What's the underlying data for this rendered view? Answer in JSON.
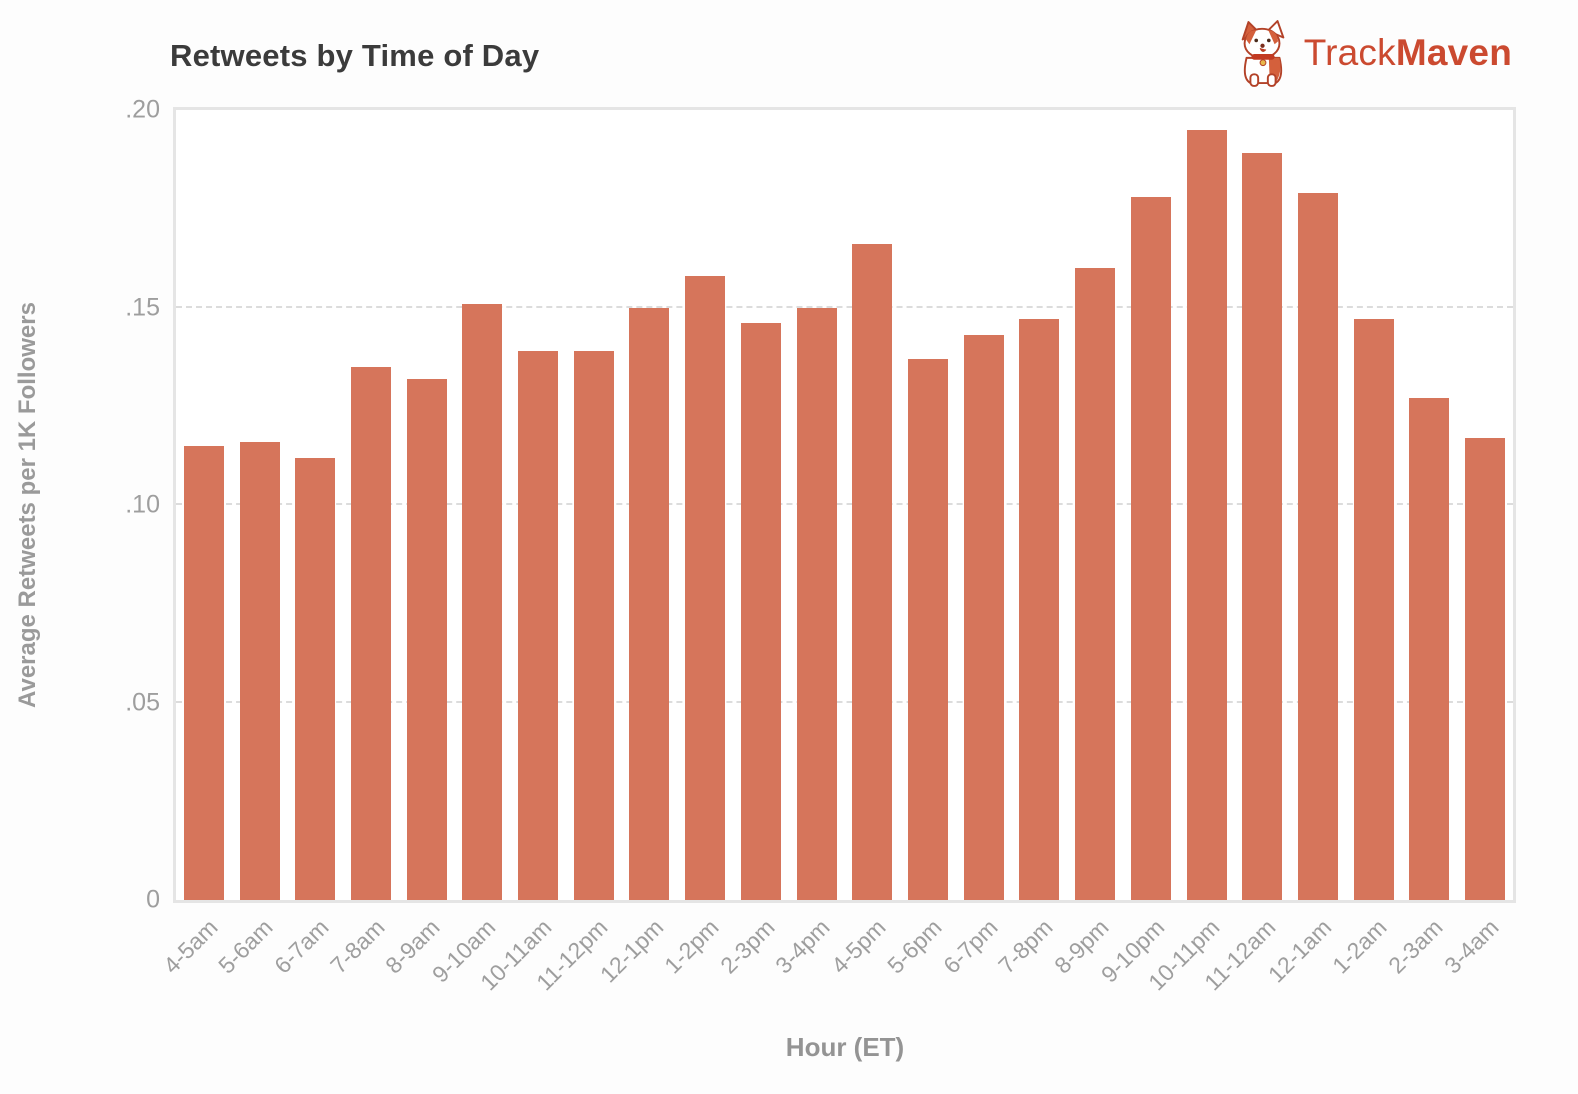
{
  "header": {
    "title": "Retweets by Time of Day",
    "logo": {
      "track": "Track",
      "maven": "Maven",
      "color": "#cb4a30",
      "mascot": "corgi-dog-icon"
    }
  },
  "chart_data": {
    "type": "bar",
    "title": "Retweets by Time of Day",
    "xlabel": "Hour (ET)",
    "ylabel": "Average Retweets per 1K Followers",
    "categories": [
      "4-5am",
      "5-6am",
      "6-7am",
      "7-8am",
      "8-9am",
      "9-10am",
      "10-11am",
      "11-12pm",
      "12-1pm",
      "1-2pm",
      "2-3pm",
      "3-4pm",
      "4-5pm",
      "5-6pm",
      "6-7pm",
      "7-8pm",
      "8-9pm",
      "9-10pm",
      "10-11pm",
      "11-12am",
      "12-1am",
      "1-2am",
      "2-3am",
      "3-4am"
    ],
    "values": [
      0.115,
      0.116,
      0.112,
      0.135,
      0.132,
      0.151,
      0.139,
      0.139,
      0.15,
      0.158,
      0.146,
      0.15,
      0.166,
      0.137,
      0.143,
      0.147,
      0.16,
      0.178,
      0.195,
      0.189,
      0.179,
      0.147,
      0.127,
      0.117
    ],
    "ylim": [
      0,
      0.2
    ],
    "yticks": [
      {
        "label": "0",
        "value": 0
      },
      {
        "label": ".05",
        "value": 0.05
      },
      {
        "label": ".10",
        "value": 0.1
      },
      {
        "label": ".15",
        "value": 0.15
      },
      {
        "label": ".20",
        "value": 0.2
      }
    ],
    "gridlines": {
      "style": "dashed",
      "at": [
        0.05,
        0.1,
        0.15
      ],
      "color": "#dcdcdc"
    },
    "legend": "none",
    "bar_color": "#d6755b"
  },
  "colors": {
    "background": "#fdfdfd",
    "plot_background": "#ffffff",
    "plot_border": "#e5e5e5",
    "title_text": "#3b3b3b",
    "axis_text": "#9e9e9e",
    "bar": "#d6755b",
    "logo": "#cb4a30"
  }
}
